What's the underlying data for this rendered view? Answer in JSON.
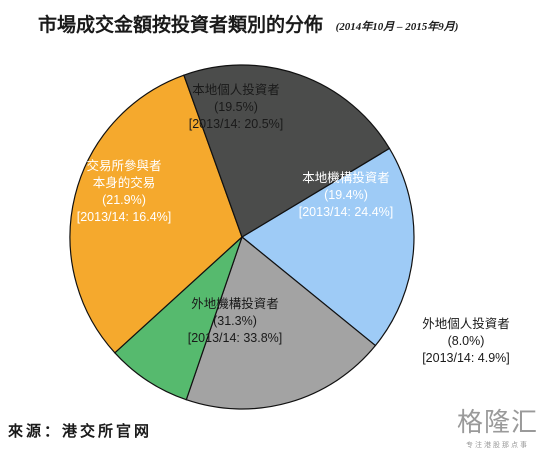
{
  "title": "市場成交金額按投資者類別的分佈",
  "period": "(2014年10月 – 2015年9月)",
  "source": "來源：港交所官网",
  "brand": {
    "name": "格隆汇",
    "tagline": "专注港股那点事"
  },
  "colors": {
    "local_individual": "#9ecbf6",
    "local_institutional": "#a3a3a3",
    "overseas_individual": "#56ba6e",
    "overseas_institutional": "#f5a92d",
    "exchange_participants": "#4b4c4b",
    "outline": "#111111"
  },
  "chart_data": {
    "type": "pie",
    "start_angle_deg": -31,
    "direction": "clockwise",
    "slices": [
      {
        "key": "local_individual",
        "lines": [
          "本地個人投資者"
        ],
        "value": 19.5,
        "value_label": "(19.5%)",
        "previous_label": "[2013/14: 20.5%]",
        "label_color": "#1a1a1a",
        "label_outside": false
      },
      {
        "key": "local_institutional",
        "lines": [
          "本地機構投資者"
        ],
        "value": 19.4,
        "value_label": "(19.4%)",
        "previous_label": "[2013/14: 24.4%]",
        "label_color": "#ffffff",
        "label_outside": false
      },
      {
        "key": "overseas_individual",
        "lines": [
          "外地個人投資者"
        ],
        "value": 8.0,
        "value_label": "(8.0%)",
        "previous_label": "[2013/14: 4.9%]",
        "label_color": "#1a1a1a",
        "label_outside": true
      },
      {
        "key": "overseas_institutional",
        "lines": [
          "外地機構投資者"
        ],
        "value": 31.3,
        "value_label": "(31.3%)",
        "previous_label": "[2013/14: 33.8%]",
        "label_color": "#1a1a1a",
        "label_outside": false
      },
      {
        "key": "exchange_participants",
        "lines": [
          "交易所參與者",
          "本身的交易"
        ],
        "value": 21.9,
        "value_label": "(21.9%)",
        "previous_label": "[2013/14: 16.4%]",
        "label_color": "#ffffff",
        "label_outside": false
      }
    ]
  }
}
